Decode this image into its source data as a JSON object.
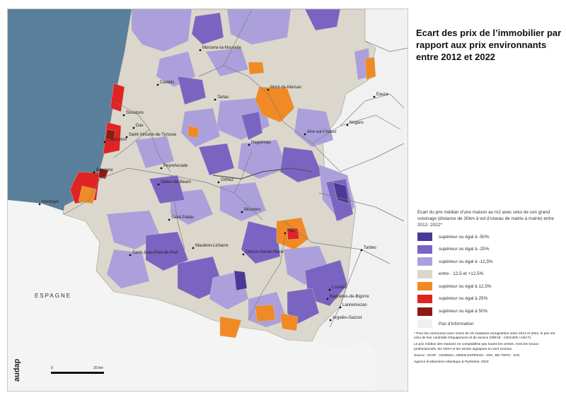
{
  "title": "Ecart des prix de l’immobilier par rapport aux prix environnants entre 2012 et 2022",
  "map": {
    "country_label": "ESPAGNE",
    "cities": [
      "Morcenx-la-Nouvelle",
      "Castets",
      "Tartas",
      "Mont-de-Marsan",
      "Soustons",
      "Dax",
      "Saint-Vincent-de-Tyrosse",
      "Capbreton",
      "Hagetmau",
      "Aire-sur-l’Adour",
      "Nogaro",
      "Eauze",
      "Peyrehorade",
      "Bayonne",
      "Orthez",
      "Salies-de-Béarn",
      "Hendaye",
      "Mourenx",
      "Pau",
      "Saint-Palais",
      "Mauléon-Licharre",
      "Oloron-Sainte-Marie",
      "Saint-Jean-Pied-de-Port",
      "Tarbes",
      "Lourdes",
      "Bagnères-de-Bigorre",
      "Lannemezan",
      "Argelès-Gazost"
    ]
  },
  "legend": {
    "title": "Ecart du prix médian d’une maison au m2 avec celui de son grand voisinage (distance de 30km à vol d’oiseau de mairie à mairie) entre 2012- 2022*",
    "items": [
      {
        "label": "supérieur ou égal à -50%",
        "color": "#4a3a96"
      },
      {
        "label": "supérieur ou égal à -25%",
        "color": "#7a64c2"
      },
      {
        "label": "supérieur ou égal à -12,5%",
        "color": "#aba0db"
      },
      {
        "label": "entre - 12,5 et +12,5%",
        "color": "#dcd7cc"
      },
      {
        "label": "supérieur ou égal à 12,5%",
        "color": "#f08a24"
      },
      {
        "label": "supérieur ou égal à 25%",
        "color": "#e02424"
      },
      {
        "label": "supérieur ou égal à 50%",
        "color": "#8e1b14"
      },
      {
        "label": "Pas d’information",
        "color": "#efefef"
      }
    ]
  },
  "notes": {
    "footnote": "* Pour les communes avec moins de 20 mutations enregistrées entre 2012 et 2022, le prix est celui de leur centralité d’équipement et de service (INRAE - CESAER / ANCT)",
    "exclusions": "Le prix médian des maisons ne comptabilise pas toutes les ventes. Ainsi les locaux professionnels, les VEFA et les ventes atypiques en sont exclues.",
    "source": "Source : DV3F - CEREMA, ADMIN EXPRESS - IGN , BD TOPO - IGN",
    "agency": "Agence d’urbanisme Atlantique & Pyrénées, 2023"
  },
  "scale": {
    "start": "0",
    "end": "20 km"
  },
  "logo_text": "audap"
}
